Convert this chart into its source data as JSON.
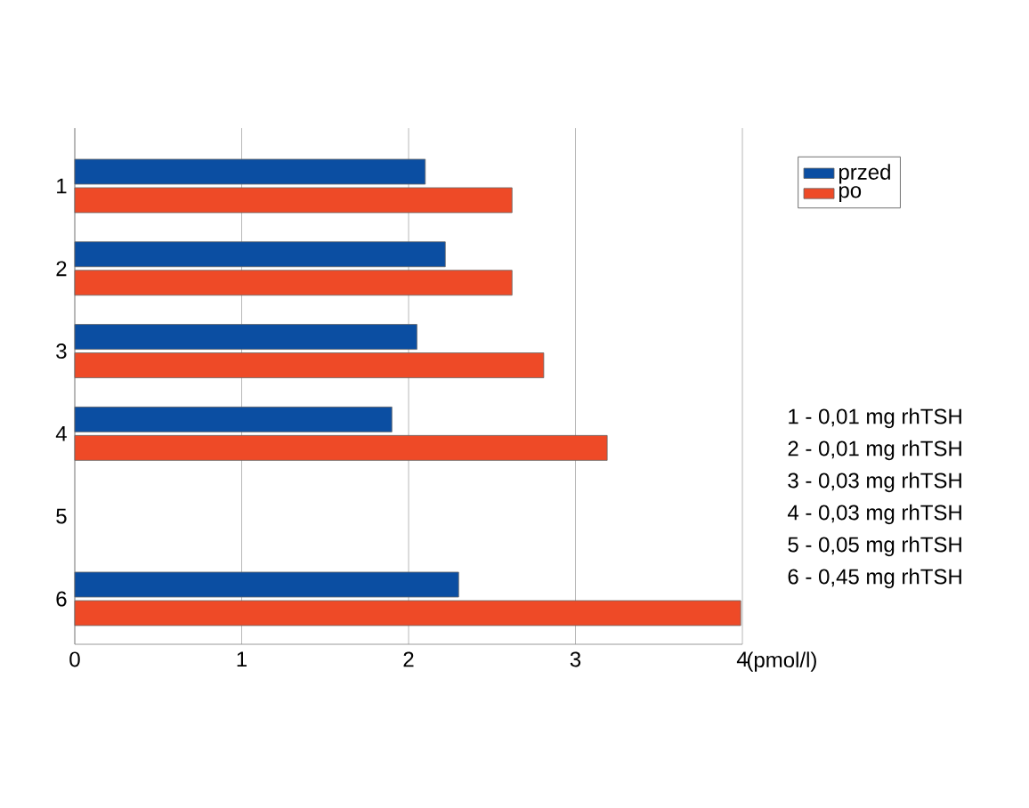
{
  "chart_data": {
    "type": "bar",
    "orientation": "horizontal",
    "xlabel": "(pmol/l)",
    "categories": [
      "1",
      "2",
      "3",
      "4",
      "5",
      "6"
    ],
    "series": [
      {
        "name": "przed",
        "color": "#0b4ea2",
        "values": [
          2.1,
          2.22,
          2.05,
          1.9,
          null,
          2.3
        ]
      },
      {
        "name": "po",
        "color": "#ee4a27",
        "values": [
          2.62,
          2.62,
          2.81,
          3.19,
          null,
          3.99
        ]
      }
    ],
    "xlim": [
      0,
      4
    ],
    "xticks": [
      0,
      1,
      2,
      3,
      4
    ],
    "grid": "x",
    "legend": "right",
    "annotations": [
      "1 - 0,01 mg rhTSH",
      "2 - 0,01 mg rhTSH",
      "3 - 0,03 mg rhTSH",
      "4 - 0,03 mg rhTSH",
      "5 - 0,05 mg rhTSH",
      "6 - 0,45 mg rhTSH"
    ]
  }
}
